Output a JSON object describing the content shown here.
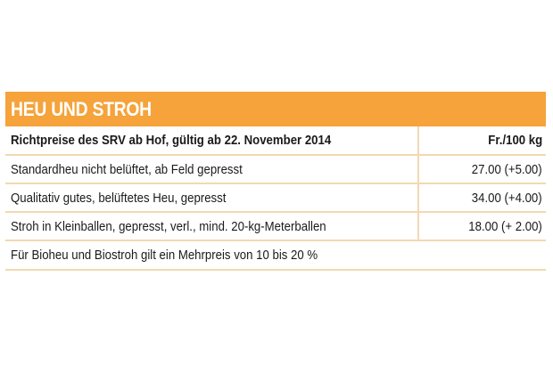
{
  "header": {
    "title": "HEU UND STROH"
  },
  "table": {
    "column_headers": {
      "description": "Richtpreise des SRV ab Hof, gültig ab 22. November 2014",
      "price": "Fr./100 kg"
    },
    "rows": [
      {
        "description": "Standardheu nicht belüftet, ab Feld gepresst",
        "price": "27.00 (+5.00)"
      },
      {
        "description": "Qualitativ gutes, belüftetes Heu, gepresst",
        "price": "34.00 (+4.00)"
      },
      {
        "description": "Stroh in Kleinballen, gepresst, verl., mind. 20-kg-Meterballen",
        "price": "18.00 (+ 2.00)"
      }
    ],
    "footnote": "Für Bioheu und Biostroh gilt ein Mehrpreis von 10 bis 20 %"
  },
  "colors": {
    "header_background": "#f5a33a",
    "header_text": "#ffffff",
    "divider": "#f2d9b0"
  }
}
